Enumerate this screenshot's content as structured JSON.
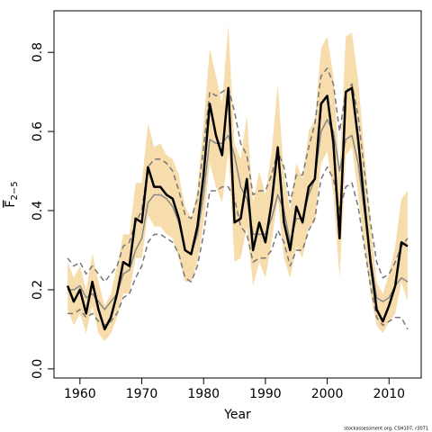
{
  "chart_data": {
    "type": "line",
    "xlabel": "Year",
    "ylabel": {
      "base": "F",
      "sub": "2−5"
    },
    "source": "stockassessment.org, CSH107, r3071",
    "x": [
      1958,
      1959,
      1960,
      1961,
      1962,
      1963,
      1964,
      1965,
      1966,
      1967,
      1968,
      1969,
      1970,
      1971,
      1972,
      1973,
      1974,
      1975,
      1976,
      1977,
      1978,
      1979,
      1980,
      1981,
      1982,
      1983,
      1984,
      1985,
      1986,
      1987,
      1988,
      1989,
      1990,
      1991,
      1992,
      1993,
      1994,
      1995,
      1996,
      1997,
      1998,
      1999,
      2000,
      2001,
      2002,
      2003,
      2004,
      2005,
      2006,
      2007,
      2008,
      2009,
      2010,
      2011,
      2012,
      2013
    ],
    "bands": [
      {
        "color": "#f7dcac",
        "upper": [
          0.27,
          0.23,
          0.26,
          0.2,
          0.29,
          0.22,
          0.16,
          0.19,
          0.26,
          0.34,
          0.34,
          0.47,
          0.47,
          0.62,
          0.56,
          0.57,
          0.54,
          0.53,
          0.49,
          0.41,
          0.38,
          0.45,
          0.62,
          0.81,
          0.74,
          0.67,
          0.87,
          0.57,
          0.53,
          0.64,
          0.42,
          0.5,
          0.44,
          0.55,
          0.72,
          0.49,
          0.4,
          0.52,
          0.48,
          0.6,
          0.63,
          0.81,
          0.84,
          0.74,
          0.5,
          0.84,
          0.85,
          0.73,
          0.55,
          0.37,
          0.22,
          0.19,
          0.24,
          0.31,
          0.43,
          0.45
        ],
        "lower": [
          0.15,
          0.11,
          0.14,
          0.09,
          0.16,
          0.09,
          0.07,
          0.09,
          0.13,
          0.19,
          0.19,
          0.28,
          0.28,
          0.39,
          0.36,
          0.36,
          0.34,
          0.33,
          0.28,
          0.22,
          0.22,
          0.27,
          0.37,
          0.52,
          0.46,
          0.42,
          0.55,
          0.27,
          0.28,
          0.36,
          0.21,
          0.27,
          0.23,
          0.32,
          0.43,
          0.28,
          0.23,
          0.31,
          0.28,
          0.36,
          0.37,
          0.52,
          0.55,
          0.44,
          0.23,
          0.54,
          0.56,
          0.44,
          0.31,
          0.19,
          0.11,
          0.09,
          0.12,
          0.14,
          0.22,
          0.17
        ]
      }
    ],
    "series": [
      {
        "color": "#777777",
        "dashed": true,
        "width": 1.5,
        "values": [
          0.28,
          0.26,
          0.27,
          0.24,
          0.26,
          0.24,
          0.22,
          0.24,
          0.26,
          0.31,
          0.32,
          0.37,
          0.4,
          0.51,
          0.53,
          0.53,
          0.52,
          0.5,
          0.45,
          0.39,
          0.38,
          0.43,
          0.56,
          0.7,
          0.69,
          0.7,
          0.71,
          0.65,
          0.57,
          0.54,
          0.44,
          0.45,
          0.45,
          0.49,
          0.55,
          0.51,
          0.42,
          0.49,
          0.49,
          0.56,
          0.62,
          0.74,
          0.76,
          0.72,
          0.6,
          0.7,
          0.72,
          0.64,
          0.5,
          0.37,
          0.27,
          0.23,
          0.24,
          0.27,
          0.31,
          0.33
        ]
      },
      {
        "color": "#777777",
        "dashed": true,
        "width": 1.5,
        "values": [
          0.14,
          0.14,
          0.15,
          0.13,
          0.14,
          0.12,
          0.11,
          0.12,
          0.14,
          0.18,
          0.19,
          0.23,
          0.26,
          0.32,
          0.34,
          0.34,
          0.33,
          0.32,
          0.29,
          0.23,
          0.22,
          0.26,
          0.34,
          0.45,
          0.45,
          0.46,
          0.46,
          0.43,
          0.36,
          0.34,
          0.27,
          0.28,
          0.28,
          0.3,
          0.35,
          0.32,
          0.26,
          0.3,
          0.3,
          0.35,
          0.38,
          0.48,
          0.51,
          0.48,
          0.4,
          0.46,
          0.47,
          0.41,
          0.31,
          0.21,
          0.13,
          0.11,
          0.12,
          0.13,
          0.13,
          0.1
        ]
      },
      {
        "color": "#888888",
        "dashed": false,
        "width": 1.5,
        "values": [
          0.2,
          0.2,
          0.21,
          0.18,
          0.19,
          0.17,
          0.15,
          0.17,
          0.19,
          0.24,
          0.25,
          0.3,
          0.33,
          0.42,
          0.44,
          0.44,
          0.43,
          0.41,
          0.37,
          0.3,
          0.29,
          0.34,
          0.44,
          0.58,
          0.57,
          0.57,
          0.59,
          0.54,
          0.46,
          0.43,
          0.34,
          0.34,
          0.34,
          0.38,
          0.44,
          0.4,
          0.32,
          0.38,
          0.38,
          0.44,
          0.48,
          0.6,
          0.63,
          0.6,
          0.5,
          0.58,
          0.59,
          0.52,
          0.4,
          0.28,
          0.18,
          0.17,
          0.18,
          0.21,
          0.23,
          0.22
        ]
      },
      {
        "color": "#000000",
        "dashed": false,
        "width": 2.5,
        "values": [
          0.21,
          0.17,
          0.2,
          0.14,
          0.22,
          0.15,
          0.1,
          0.13,
          0.19,
          0.27,
          0.26,
          0.38,
          0.37,
          0.51,
          0.46,
          0.46,
          0.44,
          0.43,
          0.38,
          0.3,
          0.29,
          0.36,
          0.49,
          0.67,
          0.59,
          0.54,
          0.71,
          0.37,
          0.38,
          0.48,
          0.3,
          0.37,
          0.32,
          0.42,
          0.56,
          0.37,
          0.3,
          0.41,
          0.37,
          0.46,
          0.48,
          0.67,
          0.69,
          0.57,
          0.33,
          0.7,
          0.71,
          0.58,
          0.42,
          0.27,
          0.15,
          0.12,
          0.16,
          0.21,
          0.32,
          0.31
        ]
      }
    ],
    "xlim": [
      1955.8,
      2015.2
    ],
    "xticks": [
      1960,
      1970,
      1980,
      1990,
      2000,
      2010
    ],
    "ylim": [
      -0.023,
      0.905
    ],
    "yticks": [
      {
        "value": 0,
        "label": "0.0"
      },
      0.2,
      0.4,
      0.6,
      0.8
    ]
  }
}
